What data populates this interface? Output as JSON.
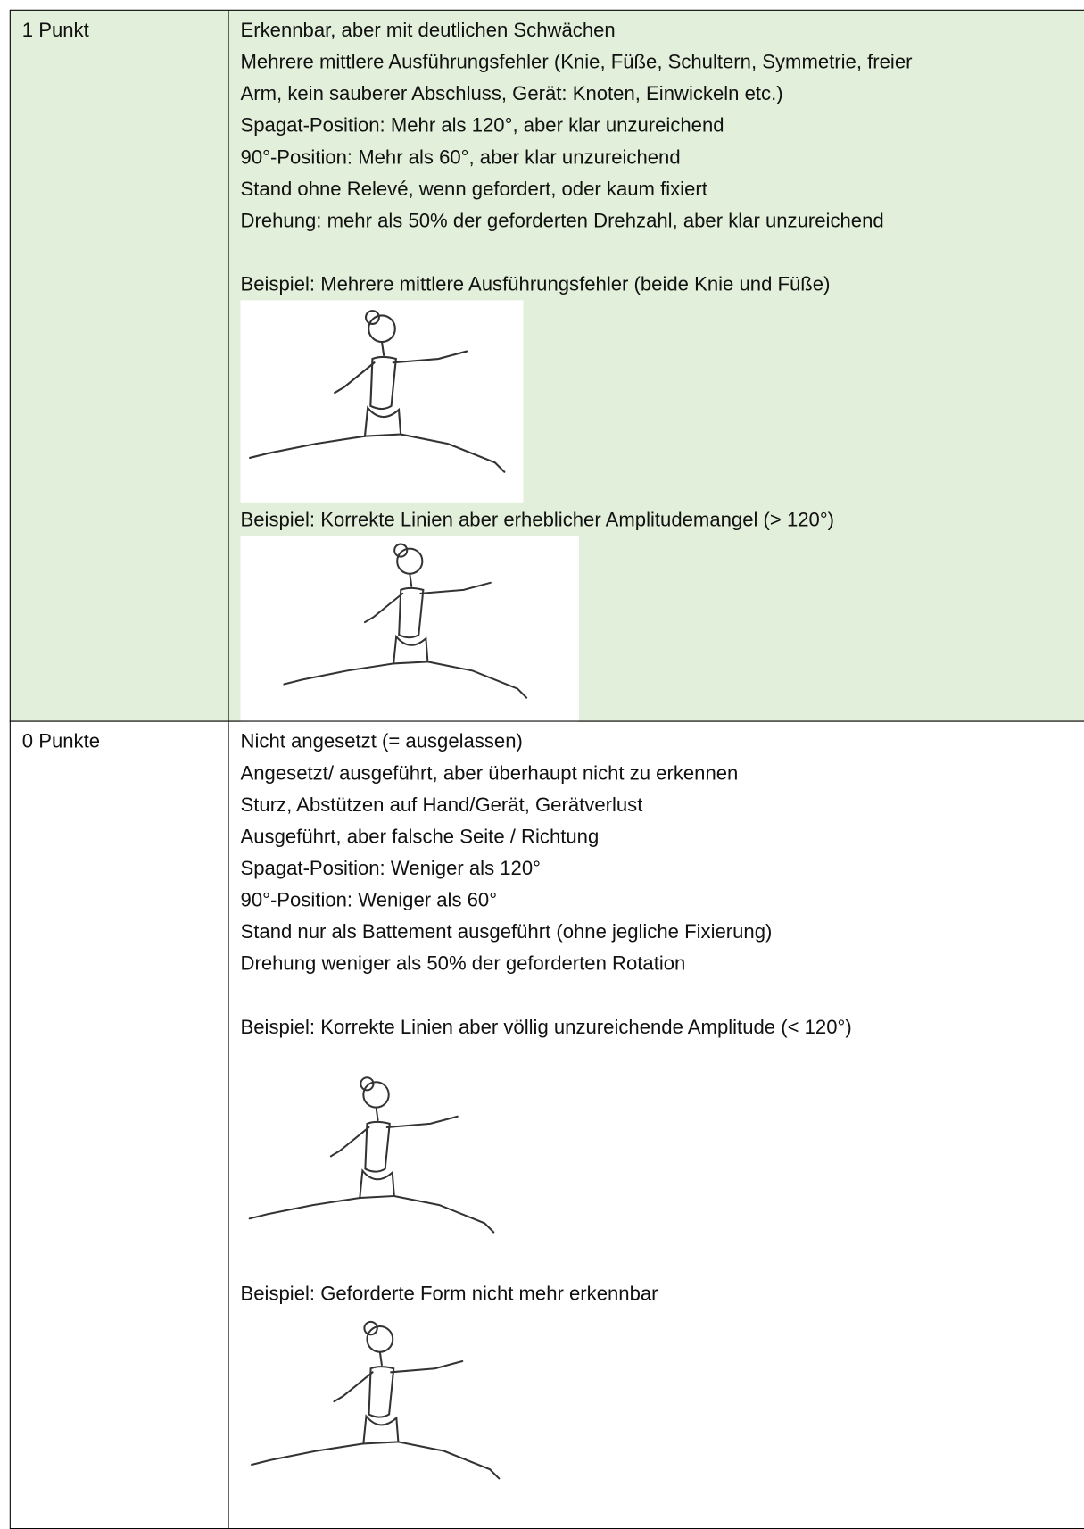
{
  "rows": [
    {
      "score": "1 Punkt",
      "lines": [
        "Erkennbar, aber mit deutlichen Schwächen",
        "Mehrere mittlere Ausführungsfehler (Knie, Füße, Schultern, Symmetrie, freier",
        "Arm, kein sauberer Abschluss, Gerät: Knoten, Einwickeln etc.)",
        "Spagat-Position: Mehr als 120°, aber klar unzureichend",
        "90°-Position: Mehr als 60°, aber klar unzureichend",
        "Stand ohne Relevé, wenn gefordert, oder kaum fixiert",
        "Drehung: mehr als 50% der geforderten Drehzahl, aber klar unzureichend"
      ],
      "examples": [
        {
          "caption": "Beispiel: Mehrere mittlere Ausführungsfehler (beide Knie und Füße)"
        },
        {
          "caption": "Beispiel: Korrekte Linien aber erheblicher Amplitudemangel (> 120°)"
        }
      ]
    },
    {
      "score": "0 Punkte",
      "lines": [
        "Nicht angesetzt (= ausgelassen)",
        "Angesetzt/ ausgeführt, aber überhaupt nicht zu erkennen",
        "Sturz, Abstützen auf Hand/Gerät, Gerätverlust",
        "Ausgeführt, aber falsche Seite / Richtung",
        "Spagat-Position: Weniger als 120°",
        "90°-Position: Weniger als 60°",
        "Stand nur als Battement ausgeführt (ohne jegliche Fixierung)",
        "Drehung weniger als 50% der geforderten Rotation"
      ],
      "examples": [
        {
          "caption": "Beispiel: Korrekte Linien aber völlig unzureichende Amplitude (< 120°)"
        },
        {
          "caption": "Beispiel: Geforderte Form nicht mehr erkennbar"
        }
      ]
    }
  ]
}
